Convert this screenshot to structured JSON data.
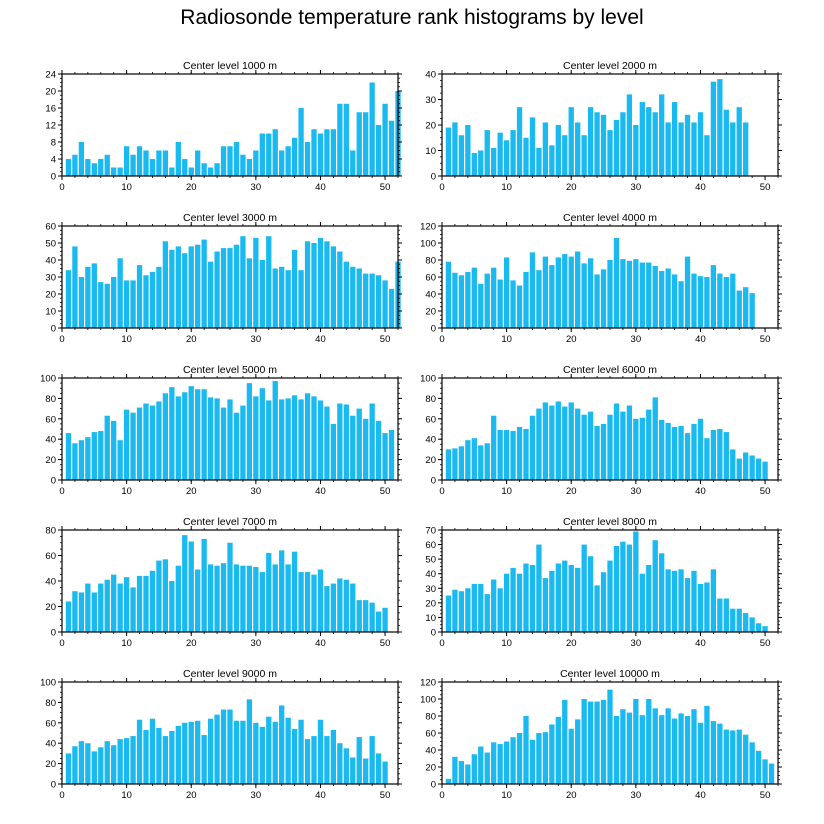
{
  "title": "Radiosonde temperature rank histograms by level",
  "colors": {
    "bar": "#1ab9f0",
    "axis": "#000000",
    "background": "#ffffff"
  },
  "chart_data": [
    {
      "type": "bar",
      "title": "Center level 1000 m",
      "xlim": [
        0,
        52
      ],
      "xticks": [
        0,
        10,
        20,
        30,
        40,
        50
      ],
      "ylim": [
        0,
        24
      ],
      "yticks": [
        0,
        4,
        8,
        12,
        16,
        20,
        24
      ],
      "values": [
        4,
        5,
        8,
        4,
        3,
        4,
        5,
        2,
        2,
        7,
        5,
        7,
        6,
        4,
        6,
        6,
        2,
        8,
        4,
        2,
        6,
        3,
        2,
        3,
        7,
        7,
        8,
        5,
        4,
        6,
        10,
        10,
        11,
        6,
        7,
        9,
        16,
        8,
        11,
        10,
        11,
        11,
        17,
        17,
        6,
        15,
        15,
        22,
        12,
        17,
        13,
        20
      ]
    },
    {
      "type": "bar",
      "title": "Center level 2000 m",
      "xlim": [
        0,
        52
      ],
      "xticks": [
        0,
        10,
        20,
        30,
        40,
        50
      ],
      "ylim": [
        0,
        40
      ],
      "yticks": [
        0,
        10,
        20,
        30,
        40
      ],
      "values": [
        19,
        21,
        16,
        20,
        9,
        10,
        18,
        11,
        17,
        14,
        18,
        27,
        15,
        23,
        11,
        21,
        12,
        20,
        16,
        27,
        21,
        16,
        27,
        25,
        24,
        18,
        22,
        25,
        32,
        20,
        29,
        27,
        25,
        32,
        21,
        29,
        21,
        24,
        21,
        25,
        16,
        37,
        38,
        26,
        21,
        27,
        21
      ]
    },
    {
      "type": "bar",
      "title": "Center level 3000 m",
      "xlim": [
        0,
        52
      ],
      "xticks": [
        0,
        10,
        20,
        30,
        40,
        50
      ],
      "ylim": [
        0,
        60
      ],
      "yticks": [
        0,
        10,
        20,
        30,
        40,
        50,
        60
      ],
      "values": [
        34,
        48,
        30,
        36,
        38,
        27,
        26,
        30,
        41,
        28,
        28,
        37,
        31,
        33,
        36,
        51,
        46,
        48,
        44,
        48,
        49,
        52,
        39,
        45,
        47,
        47,
        49,
        54,
        41,
        53,
        40,
        54,
        35,
        36,
        34,
        46,
        34,
        51,
        50,
        53,
        51,
        48,
        45,
        39,
        36,
        35,
        32,
        32,
        31,
        28,
        23,
        39
      ]
    },
    {
      "type": "bar",
      "title": "Center level 4000 m",
      "xlim": [
        0,
        52
      ],
      "xticks": [
        0,
        10,
        20,
        30,
        40,
        50
      ],
      "ylim": [
        0,
        120
      ],
      "yticks": [
        0,
        20,
        40,
        60,
        80,
        100,
        120
      ],
      "values": [
        78,
        65,
        62,
        66,
        71,
        52,
        64,
        71,
        57,
        83,
        56,
        50,
        66,
        89,
        68,
        84,
        74,
        83,
        87,
        84,
        90,
        76,
        82,
        63,
        69,
        80,
        106,
        81,
        79,
        81,
        77,
        77,
        73,
        67,
        70,
        63,
        55,
        84,
        64,
        61,
        60,
        74,
        64,
        60,
        64,
        44,
        48,
        41
      ]
    },
    {
      "type": "bar",
      "title": "Center level 5000 m",
      "xlim": [
        0,
        52
      ],
      "xticks": [
        0,
        10,
        20,
        30,
        40,
        50
      ],
      "ylim": [
        0,
        100
      ],
      "yticks": [
        0,
        20,
        40,
        60,
        80,
        100
      ],
      "values": [
        46,
        36,
        39,
        42,
        47,
        48,
        63,
        58,
        39,
        69,
        66,
        71,
        75,
        73,
        77,
        85,
        91,
        82,
        86,
        92,
        89,
        89,
        81,
        80,
        71,
        79,
        66,
        73,
        95,
        82,
        90,
        78,
        97,
        79,
        80,
        83,
        79,
        85,
        82,
        78,
        72,
        55,
        75,
        74,
        63,
        70,
        60,
        75,
        58,
        46,
        49
      ]
    },
    {
      "type": "bar",
      "title": "Center level 6000 m",
      "xlim": [
        0,
        52
      ],
      "xticks": [
        0,
        10,
        20,
        30,
        40,
        50
      ],
      "ylim": [
        0,
        100
      ],
      "yticks": [
        0,
        20,
        40,
        60,
        80,
        100
      ],
      "values": [
        30,
        31,
        33,
        39,
        41,
        34,
        36,
        63,
        49,
        49,
        48,
        52,
        50,
        63,
        70,
        76,
        73,
        77,
        72,
        76,
        70,
        64,
        67,
        53,
        55,
        64,
        75,
        67,
        73,
        60,
        61,
        69,
        81,
        59,
        56,
        52,
        53,
        46,
        55,
        60,
        41,
        49,
        50,
        47,
        30,
        21,
        27,
        24,
        21,
        18
      ]
    },
    {
      "type": "bar",
      "title": "Center level 7000 m",
      "xlim": [
        0,
        52
      ],
      "xticks": [
        0,
        10,
        20,
        30,
        40,
        50
      ],
      "ylim": [
        0,
        80
      ],
      "yticks": [
        0,
        20,
        40,
        60,
        80
      ],
      "values": [
        24,
        32,
        31,
        38,
        31,
        38,
        41,
        45,
        38,
        43,
        35,
        44,
        44,
        48,
        56,
        57,
        40,
        52,
        76,
        71,
        49,
        73,
        53,
        52,
        54,
        70,
        53,
        52,
        52,
        51,
        47,
        62,
        53,
        64,
        53,
        63,
        47,
        47,
        45,
        49,
        36,
        38,
        42,
        41,
        38,
        25,
        25,
        23,
        16,
        19
      ]
    },
    {
      "type": "bar",
      "title": "Center level 8000 m",
      "xlim": [
        0,
        52
      ],
      "xticks": [
        0,
        10,
        20,
        30,
        40,
        50
      ],
      "ylim": [
        0,
        70
      ],
      "yticks": [
        0,
        10,
        20,
        30,
        40,
        50,
        60,
        70
      ],
      "values": [
        25,
        29,
        28,
        30,
        33,
        33,
        26,
        36,
        30,
        40,
        44,
        40,
        47,
        46,
        60,
        37,
        42,
        47,
        49,
        46,
        44,
        60,
        52,
        32,
        41,
        49,
        59,
        62,
        60,
        69,
        40,
        46,
        63,
        54,
        43,
        42,
        43,
        37,
        42,
        33,
        34,
        43,
        23,
        23,
        16,
        16,
        13,
        10,
        6,
        4
      ]
    },
    {
      "type": "bar",
      "title": "Center level 9000 m",
      "xlim": [
        0,
        52
      ],
      "xticks": [
        0,
        10,
        20,
        30,
        40,
        50
      ],
      "ylim": [
        0,
        100
      ],
      "yticks": [
        0,
        20,
        40,
        60,
        80,
        100
      ],
      "values": [
        30,
        37,
        42,
        40,
        32,
        36,
        42,
        38,
        44,
        45,
        47,
        63,
        53,
        64,
        55,
        47,
        52,
        57,
        60,
        61,
        62,
        48,
        64,
        68,
        73,
        73,
        62,
        62,
        83,
        60,
        56,
        66,
        61,
        77,
        65,
        54,
        63,
        44,
        47,
        63,
        47,
        53,
        40,
        35,
        26,
        46,
        25,
        47,
        30,
        22
      ]
    },
    {
      "type": "bar",
      "title": "Center level 10000 m",
      "xlim": [
        0,
        52
      ],
      "xticks": [
        0,
        10,
        20,
        30,
        40,
        50
      ],
      "ylim": [
        0,
        120
      ],
      "yticks": [
        0,
        20,
        40,
        60,
        80,
        100,
        120
      ],
      "values": [
        6,
        32,
        27,
        23,
        35,
        44,
        37,
        49,
        47,
        50,
        55,
        60,
        80,
        52,
        60,
        61,
        70,
        79,
        99,
        65,
        76,
        100,
        97,
        97,
        99,
        111,
        80,
        88,
        84,
        100,
        81,
        100,
        89,
        81,
        89,
        77,
        83,
        80,
        88,
        72,
        92,
        74,
        71,
        64,
        63,
        64,
        58,
        49,
        39,
        29,
        24
      ]
    }
  ]
}
